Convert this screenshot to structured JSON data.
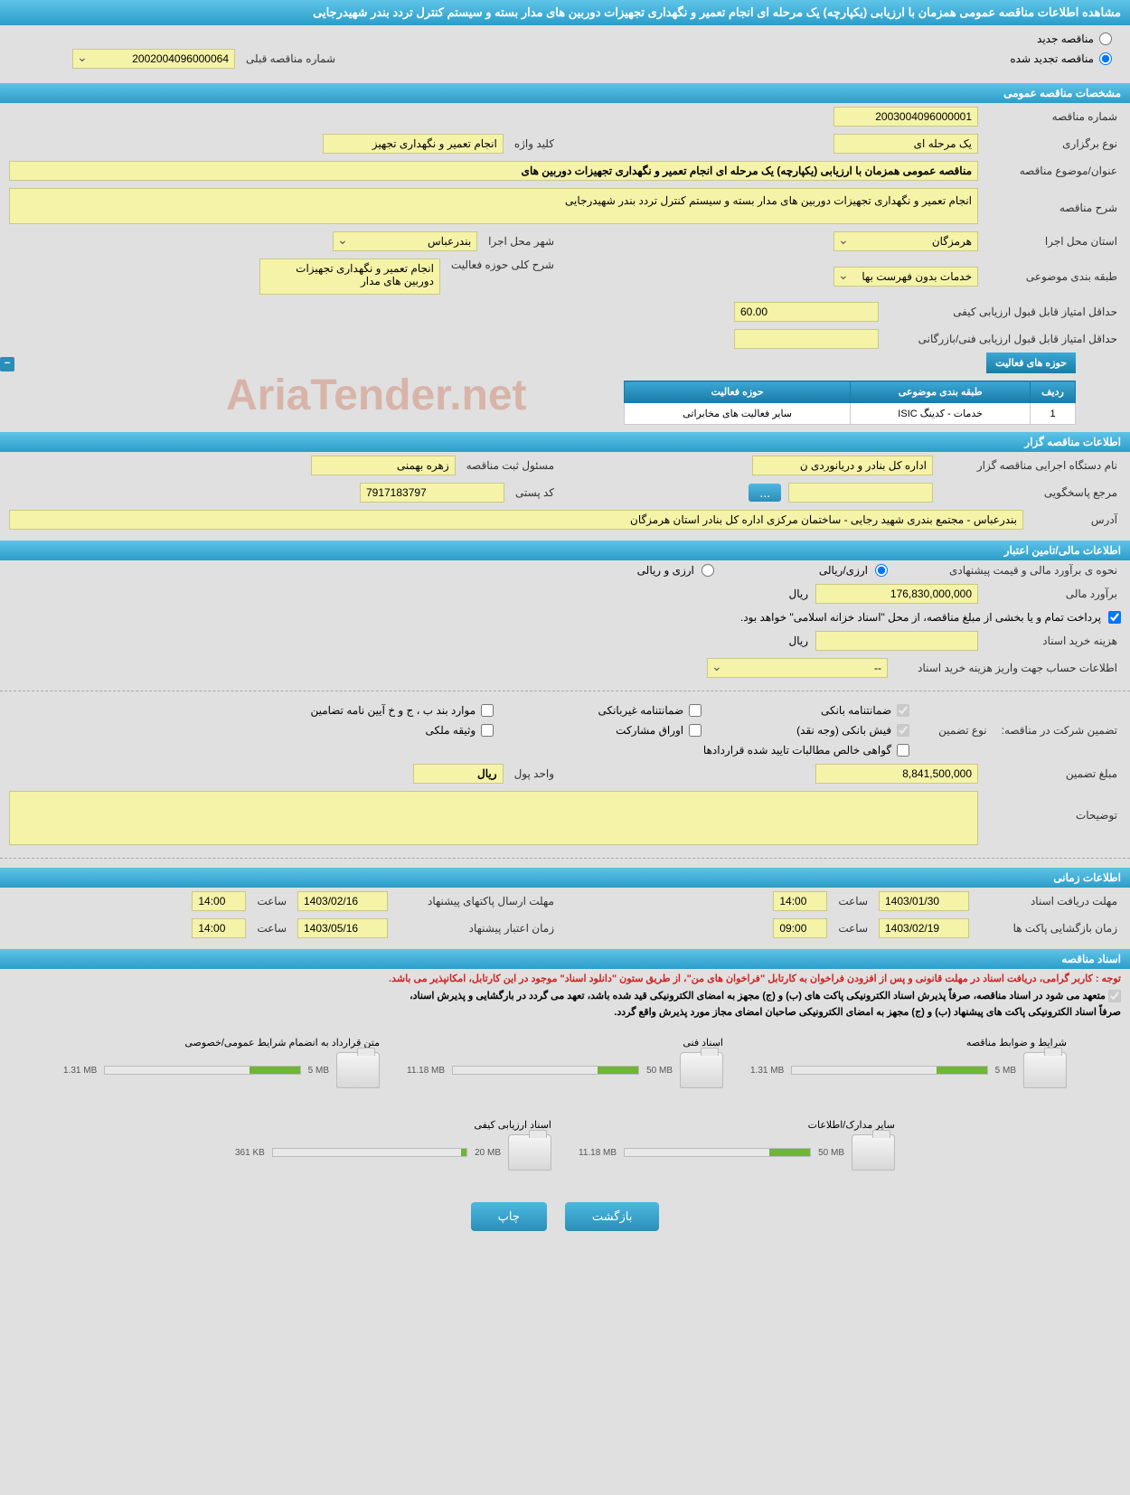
{
  "header": {
    "title": "مشاهده اطلاعات مناقصه عمومی همزمان با ارزیابی (یکپارچه) یک مرحله ای انجام تعمیر و نگهداری تجهیزات دوربین های مدار بسته و سیستم کنترل تردد بندر شهیدرجایی"
  },
  "tender_type": {
    "new_label": "مناقصه جدید",
    "renewed_label": "مناقصه تجدید شده",
    "prev_number_label": "شماره مناقصه قبلی",
    "prev_number": "2002004096000064"
  },
  "general_section": {
    "title": "مشخصات مناقصه عمومی",
    "tender_number_label": "شماره مناقصه",
    "tender_number": "2003004096000001",
    "holding_type_label": "نوع برگزاری",
    "holding_type": "یک مرحله ای",
    "keyword_label": "کلید واژه",
    "keyword": "انجام تعمیر و نگهداری تجهیز",
    "subject_label": "عنوان/موضوع مناقصه",
    "subject": "مناقصه عمومی همزمان با ارزیابی (یکپارچه) یک مرحله ای انجام تعمیر و نگهداری تجهیزات دوربین های",
    "description_label": "شرح مناقصه",
    "description": "انجام تعمیر و نگهداری تجهیزات دوربین های مدار بسته و سیستم کنترل تردد بندر شهیدرجایی",
    "province_label": "استان محل اجرا",
    "province": "هرمزگان",
    "city_label": "شهر محل اجرا",
    "city": "بندرعباس",
    "category_label": "طبقه بندی موضوعی",
    "category": "خدمات بدون فهرست بها",
    "activity_desc_label": "شرح کلی حوزه فعالیت",
    "activity_desc": "انجام تعمیر و نگهداری تجهیزات دوربین های مدار",
    "min_qual_score_label": "حداقل امتیاز قابل قبول ارزیابی کیفی",
    "min_qual_score": "60.00",
    "min_tech_score_label": "حداقل امتیاز قابل قبول ارزیابی فنی/بازرگانی"
  },
  "activity_table": {
    "title": "حوزه های فعالیت",
    "col_row": "ردیف",
    "col_category": "طبقه بندی موضوعی",
    "col_activity": "حوزه فعالیت",
    "rows": [
      {
        "row": "1",
        "category": "خدمات - کدینگ ISIC",
        "activity": "سایر فعالیت های مخابراتی"
      }
    ]
  },
  "organizer_section": {
    "title": "اطلاعات مناقصه گزار",
    "org_name_label": "نام دستگاه اجرایی مناقصه گزار",
    "org_name": "اداره کل بنادر و دریانوردی ن",
    "registrar_label": "مسئول ثبت مناقصه",
    "registrar": "زهره بهمنی",
    "inquiry_label": "مرجع پاسخگویی",
    "ellipsis": "...",
    "postal_label": "کد پستی",
    "postal": "7917183797",
    "address_label": "آدرس",
    "address": "بندرعباس - مجتمع بندری شهید رجایی - ساختمان مرکزی اداره کل بنادر استان هرمزگان"
  },
  "financial_section": {
    "title": "اطلاعات مالی/تامین اعتبار",
    "method_label": "نحوه ی برآورد مالی و قیمت پیشنهادی",
    "rial_label": "ارزی/ریالی",
    "currency_both_label": "ارزی و ریالی",
    "estimate_label": "برآورد مالی",
    "estimate_value": "176,830,000,000",
    "rial_unit": "ریال",
    "source_note": "پرداخت تمام و یا بخشی از مبلغ مناقصه، از محل \"اسناد خزانه اسلامی\" خواهد بود.",
    "purchase_cost_label": "هزینه خرید اسناد",
    "account_info_label": "اطلاعات حساب جهت واریز هزینه خرید اسناد",
    "account_placeholder": "--"
  },
  "guarantee_section": {
    "participation_label": "تضمین شرکت در مناقصه:",
    "type_label": "نوع تضمین",
    "bank_guarantee": "ضمانتنامه بانکی",
    "nonbank_guarantee": "ضمانتنامه غیربانکی",
    "bond_items": "موارد بند ب ، ج و خ آیین نامه تضامین",
    "bank_receipt": "فیش بانکی (وجه نقد)",
    "securities": "اوراق مشارکت",
    "property_deed": "وثیقه ملکی",
    "net_claims": "گواهی خالص مطالبات تایید شده قراردادها",
    "amount_label": "مبلغ تضمین",
    "amount_value": "8,841,500,000",
    "unit_label": "واحد پول",
    "unit_value": "ریال",
    "notes_label": "توضیحات"
  },
  "time_section": {
    "title": "اطلاعات زمانی",
    "receive_deadline_label": "مهلت دریافت اسناد",
    "receive_date": "1403/01/30",
    "receive_time": "14:00",
    "submit_deadline_label": "مهلت ارسال پاکتهای پیشنهاد",
    "submit_date": "1403/02/16",
    "submit_time": "14:00",
    "opening_label": "زمان بازگشایی پاکت ها",
    "opening_date": "1403/02/19",
    "opening_time": "09:00",
    "validity_label": "زمان اعتبار پیشنهاد",
    "validity_date": "1403/05/16",
    "validity_time": "14:00",
    "hour_label": "ساعت"
  },
  "documents_section": {
    "title": "اسناد مناقصه",
    "notice_red": "توجه : کاربر گرامی، دریافت اسناد در مهلت قانونی و پس از افزودن فراخوان به کارتابل \"فراخوان های من\"، از طریق ستون \"دانلود اسناد\" موجود در این کارتابل، امکانپذیر می باشد.",
    "notice1": "متعهد می شود در اسناد مناقصه، صرفاً پذیرش اسناد الکترونیکی پاکت های (ب) و (ج) مجهز به امضای الکترونیکی قید شده باشد، تعهد می گردد در بارگشایی و پذیرش اسناد،",
    "notice2": "صرفاً اسناد الکترونیکی پاکت های پیشنهاد (ب) و (ج) مجهز به امضای الکترونیکی صاحبان امضای مجاز مورد پذیرش واقع گردد.",
    "docs": [
      {
        "title": "شرایط و ضوابط مناقصه",
        "used": "1.31 MB",
        "limit": "5 MB",
        "fill_pct": 26
      },
      {
        "title": "اسناد فنی",
        "used": "11.18 MB",
        "limit": "50 MB",
        "fill_pct": 22
      },
      {
        "title": "متن قرارداد به انضمام شرایط عمومی/خصوصی",
        "used": "1.31 MB",
        "limit": "5 MB",
        "fill_pct": 26
      },
      {
        "title": "سایر مدارک/اطلاعات",
        "used": "11.18 MB",
        "limit": "50 MB",
        "fill_pct": 22
      },
      {
        "title": "اسناد ارزیابی کیفی",
        "used": "361 KB",
        "limit": "20 MB",
        "fill_pct": 3
      }
    ]
  },
  "buttons": {
    "back": "بازگشت",
    "print": "چاپ"
  },
  "colors": {
    "header_bg": "#2b9dc9",
    "yellow_bg": "#f5f3a8",
    "page_bg": "#e0e0e0",
    "progress_fill": "#6fb536",
    "notice_red": "#d02020"
  }
}
